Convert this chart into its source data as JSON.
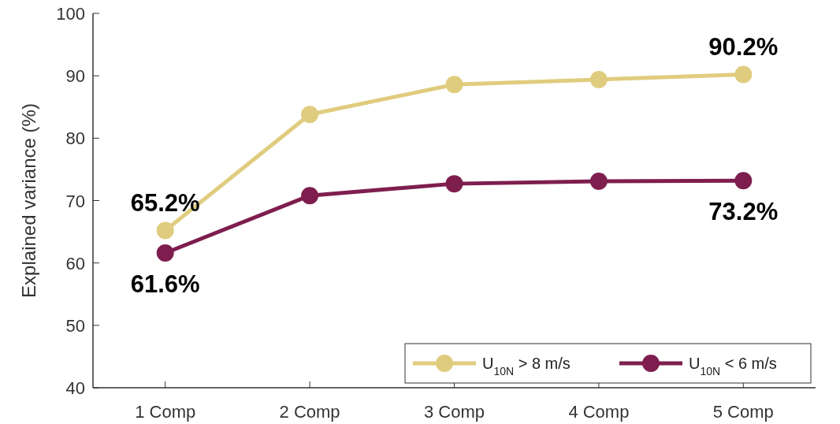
{
  "chart_data": {
    "type": "line",
    "ylabel": "Explained variance (%)",
    "categories": [
      "1 Comp",
      "2 Comp",
      "3 Comp",
      "4 Comp",
      "5 Comp"
    ],
    "series": [
      {
        "name": "U$_{10N}$ > 8 m/s",
        "color": "#e0cc7e",
        "values": [
          65.2,
          83.8,
          88.6,
          89.4,
          90.2
        ],
        "value_labels": [
          "65.2%",
          null,
          null,
          null,
          "90.2%"
        ]
      },
      {
        "name": "U$_{10N}$ < 6 m/s",
        "color": "#7e1e4f",
        "values": [
          61.6,
          70.8,
          72.7,
          73.1,
          73.2
        ],
        "value_labels": [
          "61.6%",
          null,
          null,
          null,
          "73.2%"
        ]
      }
    ],
    "ylim": [
      40,
      100
    ],
    "yticks": [
      40,
      50,
      60,
      70,
      80,
      90,
      100
    ],
    "marker": "circle",
    "line_style": "solid",
    "legend": "bottom right",
    "grid": false
  }
}
